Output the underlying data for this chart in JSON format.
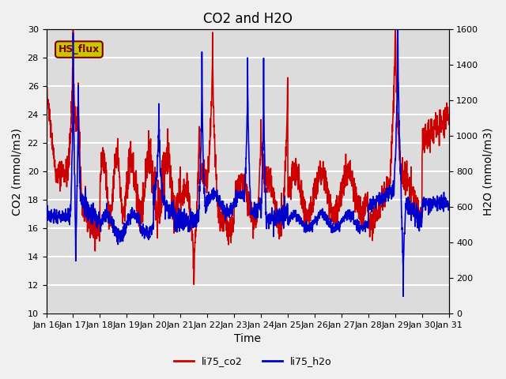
{
  "title": "CO2 and H2O",
  "xlabel": "Time",
  "ylabel_left": "CO2 (mmol/m3)",
  "ylabel_right": "H2O (mmol/m3)",
  "ylim_left": [
    10,
    30
  ],
  "ylim_right": [
    0,
    1600
  ],
  "yticks_left": [
    10,
    12,
    14,
    16,
    18,
    20,
    22,
    24,
    26,
    28,
    30
  ],
  "yticks_right": [
    0,
    200,
    400,
    600,
    800,
    1000,
    1200,
    1400,
    1600
  ],
  "xtick_labels": [
    "Jan 16",
    "Jan 17",
    "Jan 18",
    "Jan 19",
    "Jan 20",
    "Jan 21",
    "Jan 22",
    "Jan 23",
    "Jan 24",
    "Jan 25",
    "Jan 26",
    "Jan 27",
    "Jan 28",
    "Jan 29",
    "Jan 30",
    "Jan 31"
  ],
  "co2_color": "#cc0000",
  "h2o_color": "#0000cc",
  "background_color": "#e8e8e8",
  "plot_bg_color": "#dcdcdc",
  "hs_flux_label": "HS_flux",
  "hs_flux_bg": "#c8c800",
  "hs_flux_fg": "#800000",
  "legend_co2": "li75_co2",
  "legend_h2o": "li75_h2o",
  "title_fontsize": 12,
  "axis_fontsize": 10,
  "tick_fontsize": 8,
  "linewidth": 1.2
}
